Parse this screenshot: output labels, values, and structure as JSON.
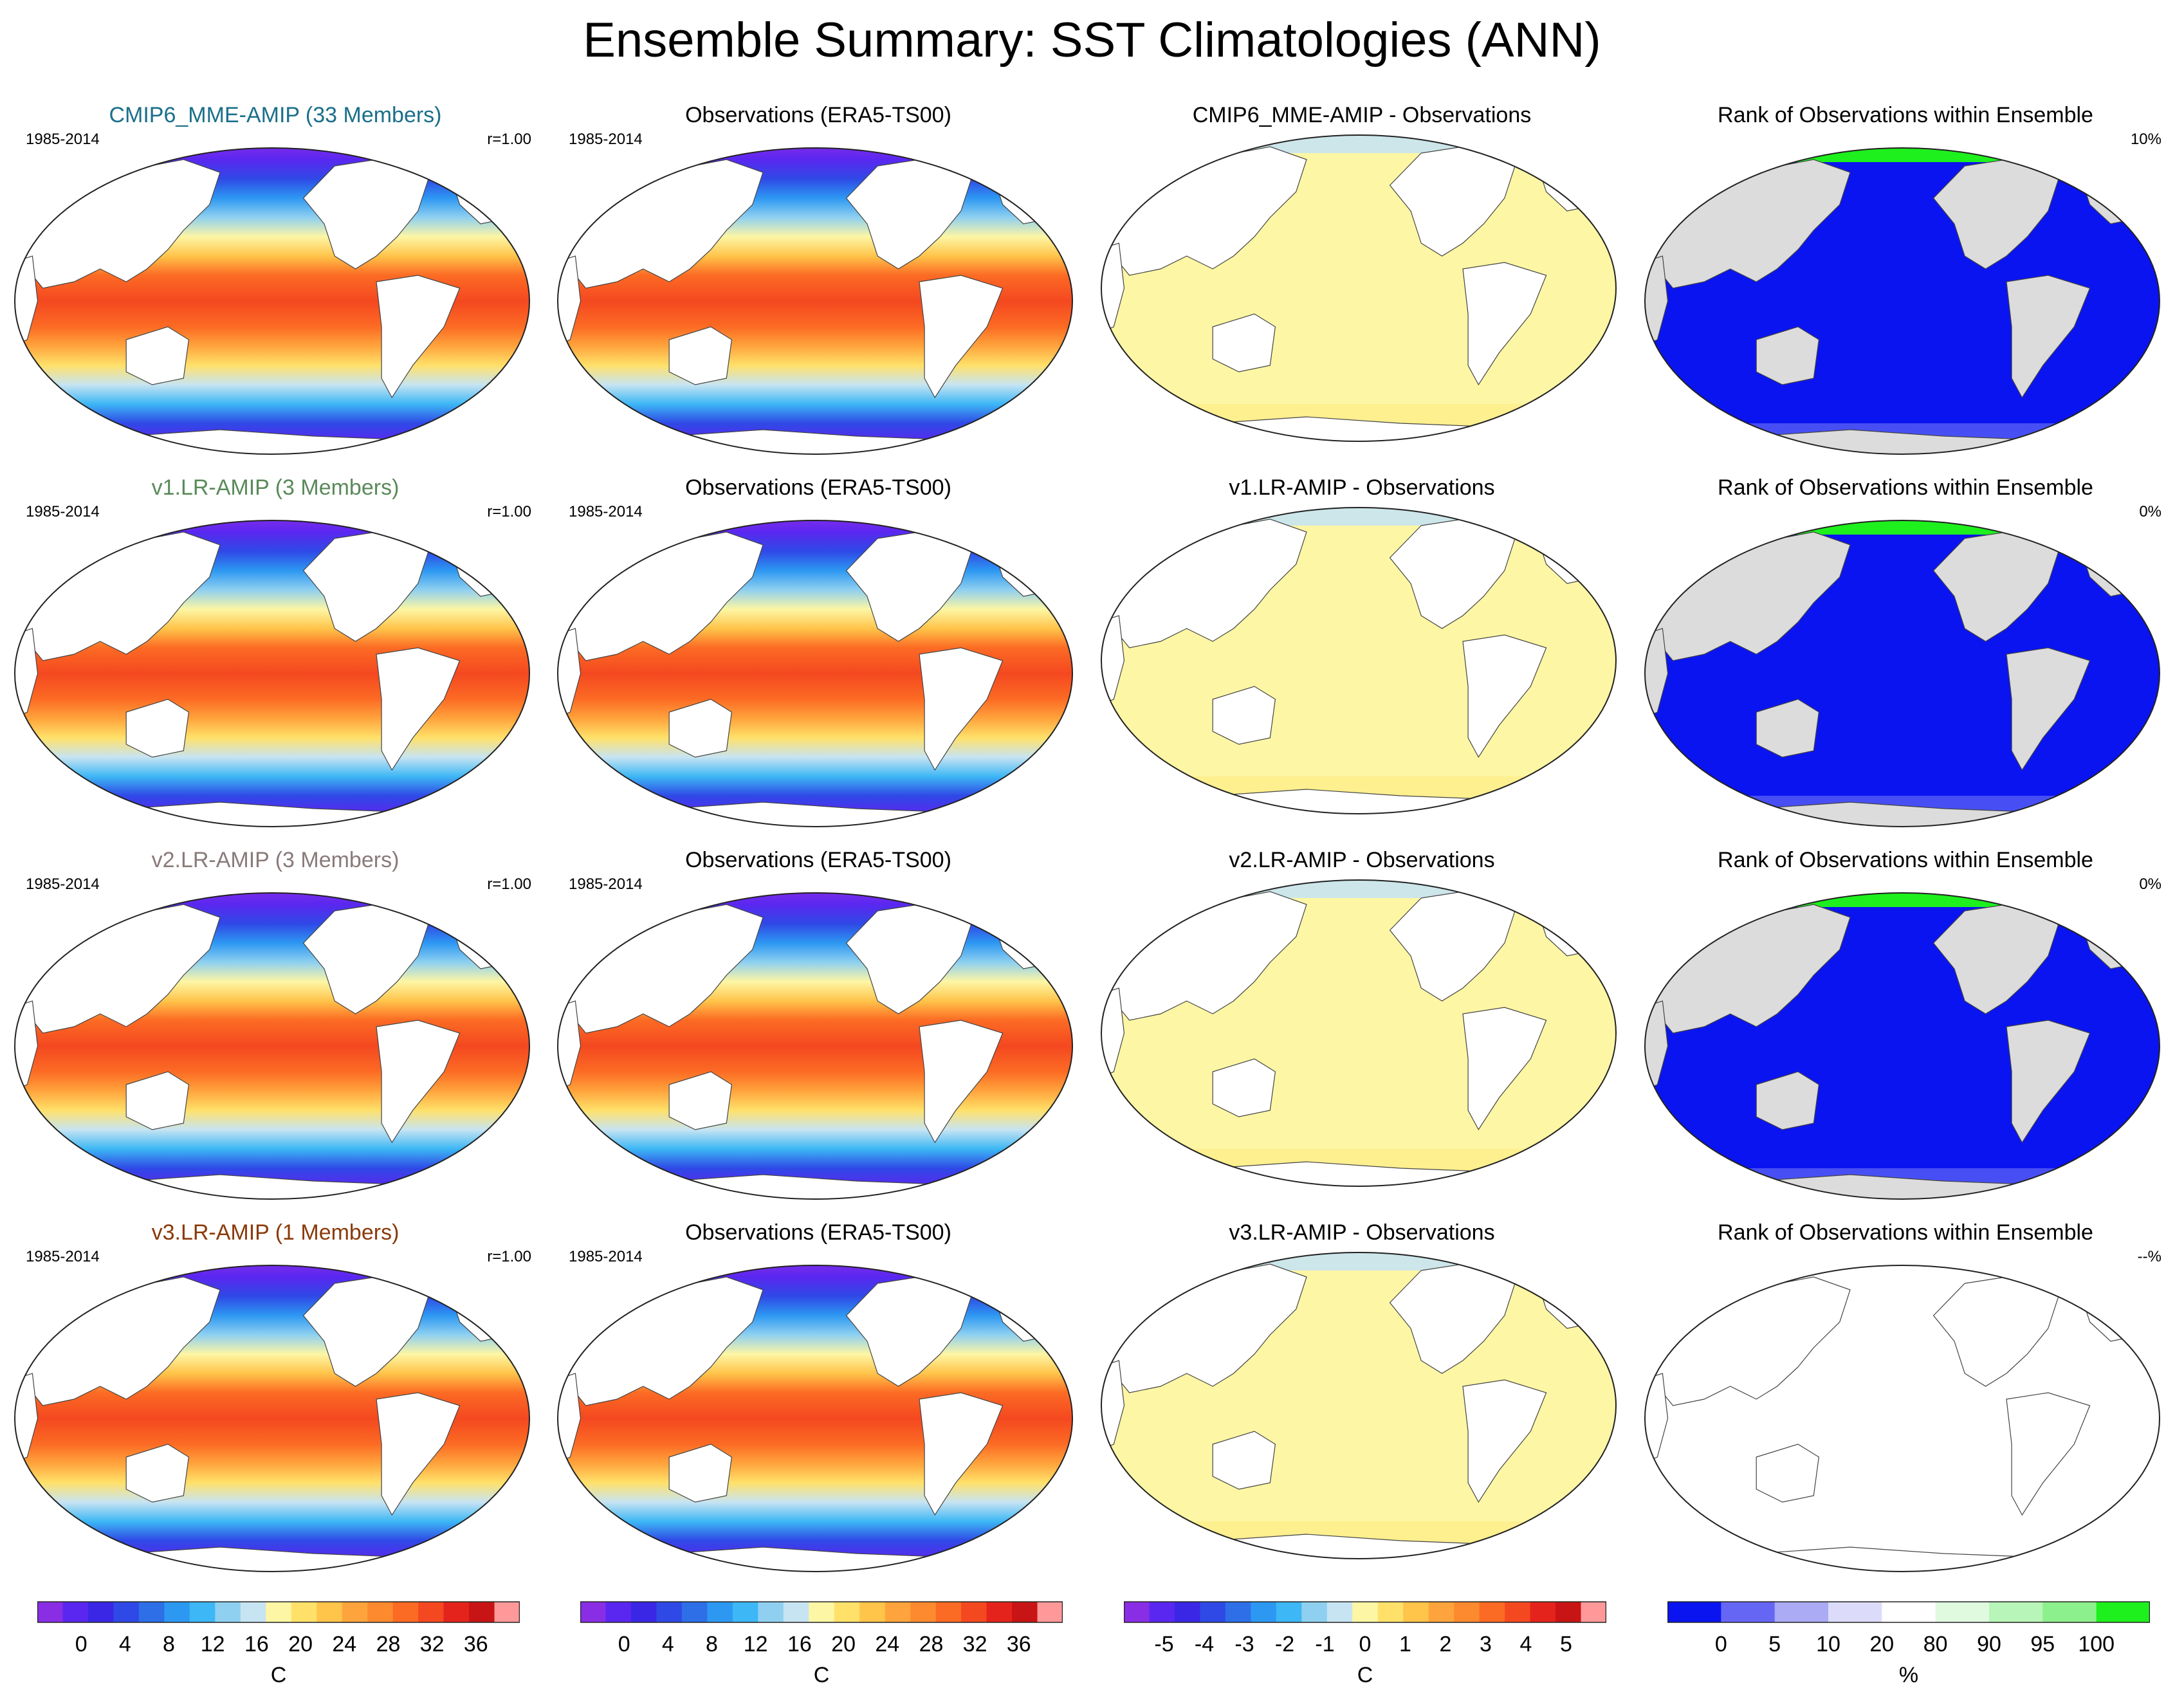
{
  "title": "Ensemble Summary: SST Climatologies (ANN)",
  "colors": {
    "sst": [
      "#8a2ee6",
      "#5a27f0",
      "#3a27e6",
      "#2f49e6",
      "#2e6fe8",
      "#2d98f2",
      "#3db7f5",
      "#8fd0f0",
      "#c7e4f2",
      "#fdf6a4",
      "#ffe16a",
      "#ffc44a",
      "#ffa43c",
      "#fe8a30",
      "#fc6b24",
      "#f44820",
      "#e4241c",
      "#c81414",
      "#ff9999"
    ],
    "diff": [
      "#8a2ee6",
      "#5a27f0",
      "#3a27e6",
      "#2f49e6",
      "#2e6fe8",
      "#2d98f2",
      "#3db7f5",
      "#8fd0f0",
      "#c7e4f2",
      "#fdf6a4",
      "#ffe16a",
      "#ffc44a",
      "#ffa43c",
      "#fe8a30",
      "#fc6b24",
      "#f44820",
      "#e4241c",
      "#c81414",
      "#ff9999"
    ],
    "rank": [
      "#0a14f0",
      "#6666f5",
      "#aaaaf5",
      "#dcdcfa",
      "#ffffff",
      "#e0fae0",
      "#b8f5b8",
      "#8cf08c",
      "#1ef01e"
    ],
    "land": "#ffffff",
    "land_gray": "#dcdcdc"
  },
  "rows": [
    {
      "model": {
        "title": "CMIP6_MME-AMIP (33 Members)",
        "title_color": "#1a6f8a",
        "period": "1985-2014",
        "corr": "r=1.00"
      },
      "obs": {
        "title": "Observations (ERA5-TS00)",
        "period": "1985-2014"
      },
      "diff": {
        "title": "CMIP6_MME-AMIP - Observations"
      },
      "rank": {
        "title": "Rank of Observations within Ensemble",
        "pct": "10%"
      }
    },
    {
      "model": {
        "title": "v1.LR-AMIP (3 Members)",
        "title_color": "#5a8a5a",
        "period": "1985-2014",
        "corr": "r=1.00"
      },
      "obs": {
        "title": "Observations (ERA5-TS00)",
        "period": "1985-2014"
      },
      "diff": {
        "title": "v1.LR-AMIP - Observations"
      },
      "rank": {
        "title": "Rank of Observations within Ensemble",
        "pct": "0%"
      }
    },
    {
      "model": {
        "title": "v2.LR-AMIP (3 Members)",
        "title_color": "#8a7a7a",
        "period": "1985-2014",
        "corr": "r=1.00"
      },
      "obs": {
        "title": "Observations (ERA5-TS00)",
        "period": "1985-2014"
      },
      "diff": {
        "title": "v2.LR-AMIP - Observations"
      },
      "rank": {
        "title": "Rank of Observations within Ensemble",
        "pct": "0%"
      }
    },
    {
      "model": {
        "title": "v3.LR-AMIP (1 Members)",
        "title_color": "#8a3a0a",
        "period": "1985-2014",
        "corr": "r=1.00"
      },
      "obs": {
        "title": "Observations (ERA5-TS00)",
        "period": "1985-2014"
      },
      "diff": {
        "title": "v3.LR-AMIP - Observations"
      },
      "rank": {
        "title": "Rank of Observations within Ensemble",
        "pct": "--%"
      }
    }
  ],
  "colorbars": [
    {
      "name": "sst-model",
      "palette": "sst",
      "labels": [
        "0",
        "4",
        "8",
        "12",
        "16",
        "20",
        "24",
        "28",
        "32",
        "36"
      ],
      "unit": "C"
    },
    {
      "name": "sst-obs",
      "palette": "sst",
      "labels": [
        "0",
        "4",
        "8",
        "12",
        "16",
        "20",
        "24",
        "28",
        "32",
        "36"
      ],
      "unit": "C"
    },
    {
      "name": "sst-diff",
      "palette": "diff",
      "labels": [
        "-5",
        "-4",
        "-3",
        "-2",
        "-1",
        "0",
        "1",
        "2",
        "3",
        "4",
        "5"
      ],
      "unit": "C"
    },
    {
      "name": "rank",
      "palette": "rank",
      "labels": [
        "0",
        "5",
        "10",
        "20",
        "80",
        "90",
        "95",
        "100"
      ],
      "unit": "%"
    }
  ]
}
